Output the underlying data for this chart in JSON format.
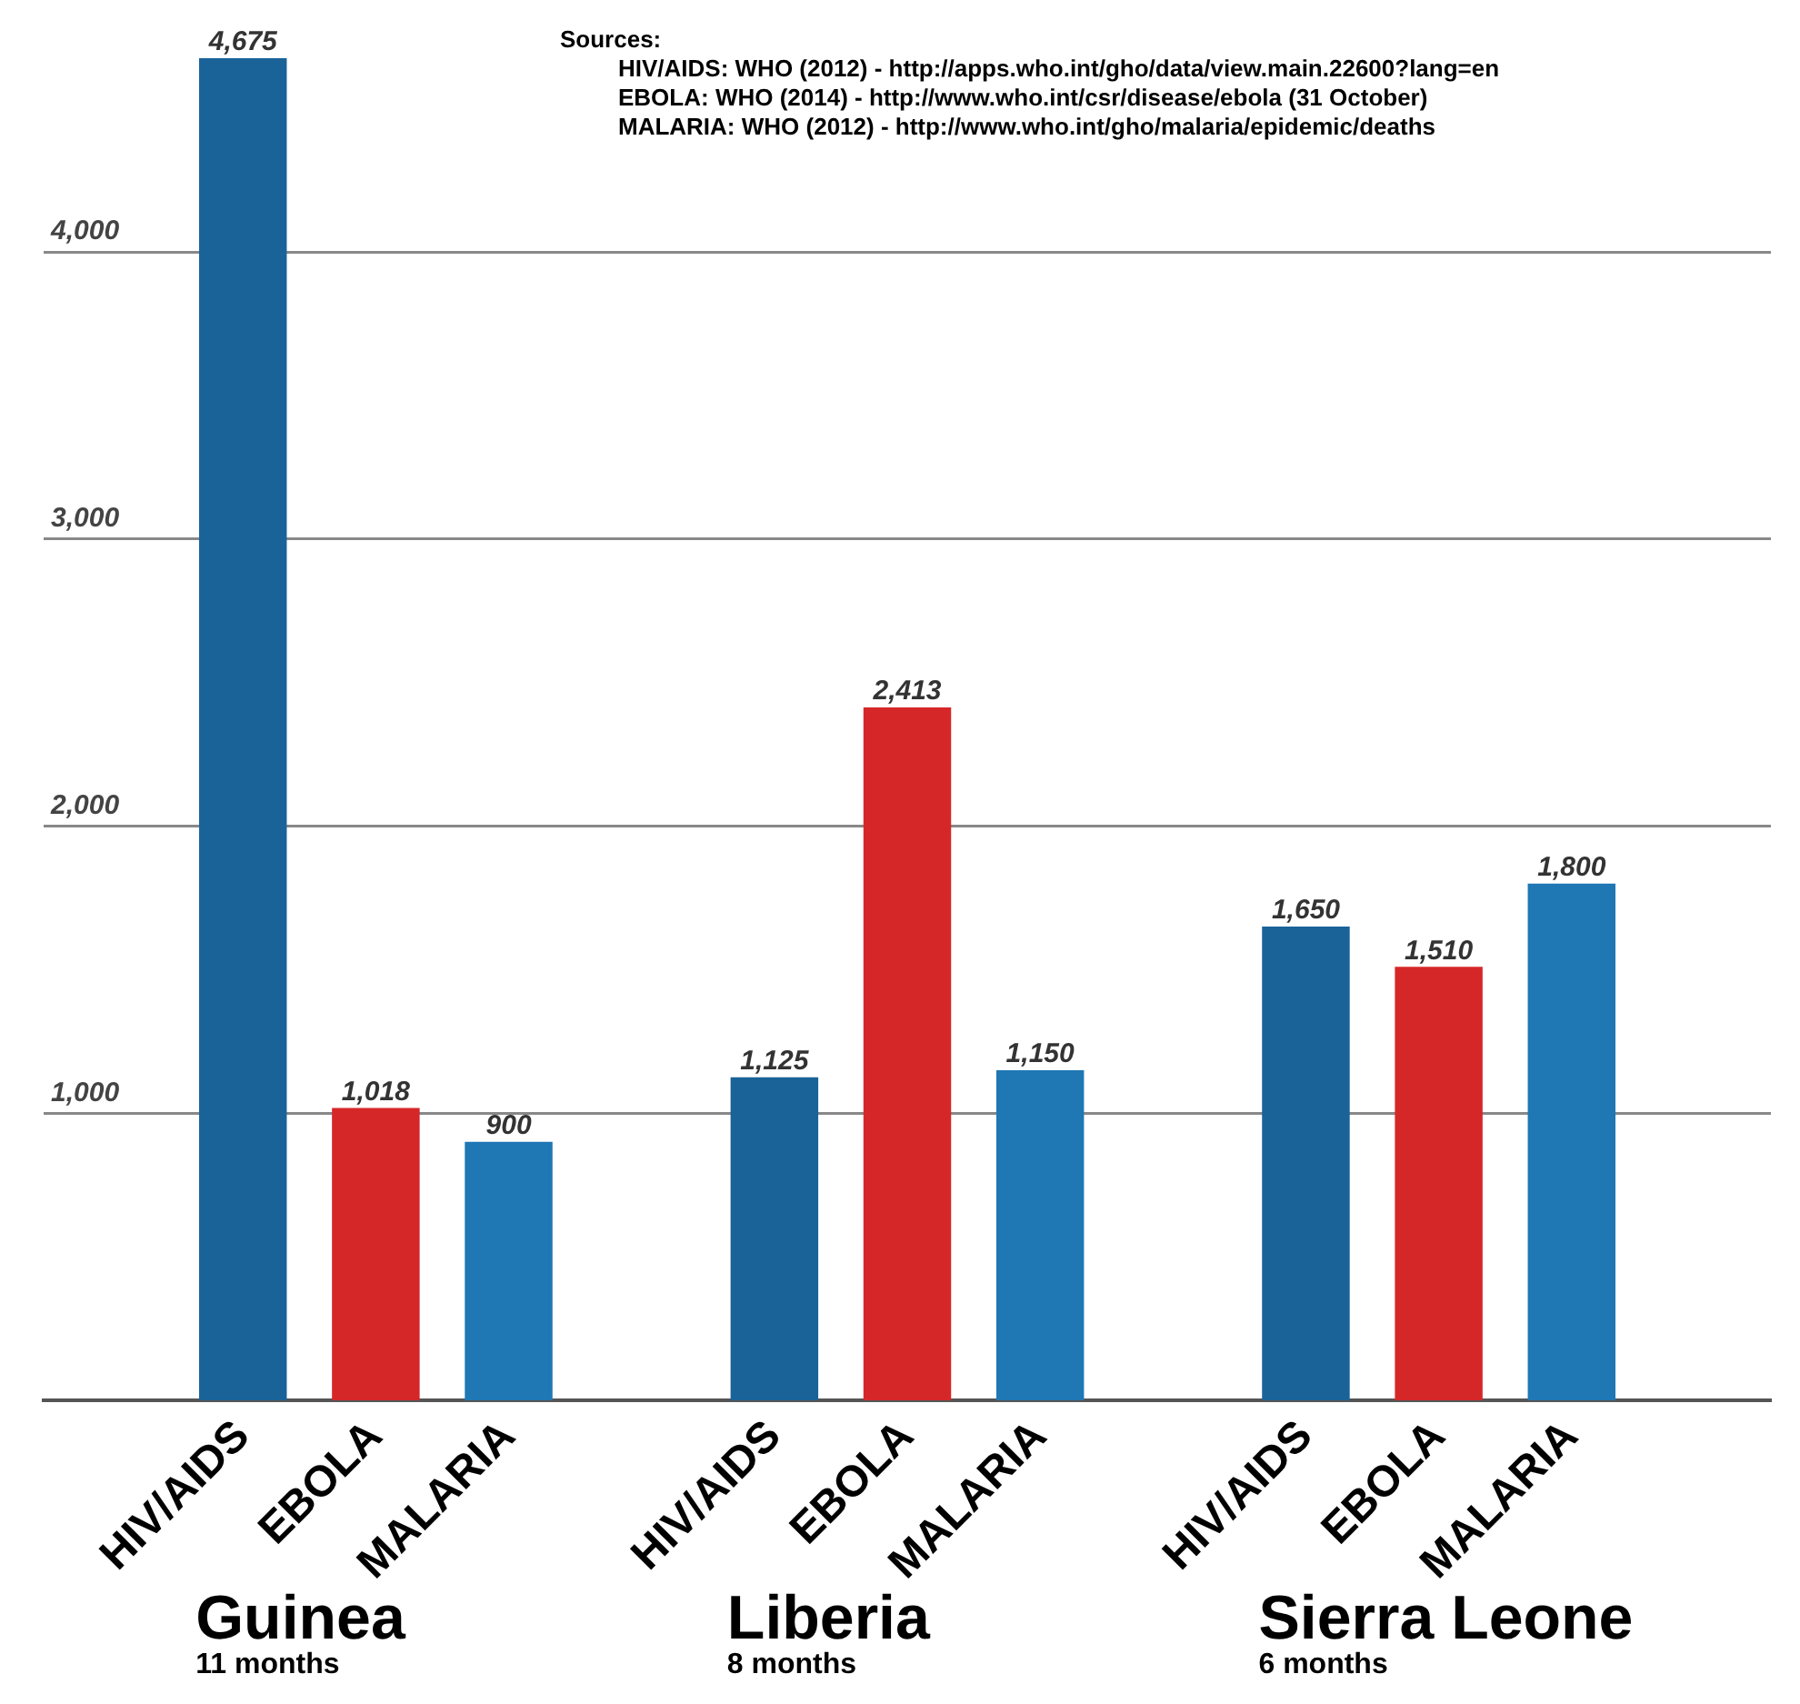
{
  "chart_data": {
    "type": "bar",
    "categories": [
      null,
      "HIV/AIDS",
      "EBOLA",
      "MALARIA",
      null,
      "HIV/AIDS",
      "EBOLA",
      "MALARIA",
      null,
      "HIV/AIDS",
      "EBOLA",
      "MALARIA",
      null
    ],
    "values": [
      null,
      4675,
      1018,
      900,
      null,
      1125,
      2413,
      1150,
      null,
      1650,
      1510,
      1800,
      null
    ],
    "colors": [
      "#1a6399",
      "#1a6399",
      "#d62728",
      "#1f77b4",
      "#1a6399",
      "#1a6399",
      "#d62728",
      "#1f77b4",
      "#1a6399",
      "#1a6399",
      "#d62728",
      "#1f77b4",
      "#1a6399"
    ],
    "value_labels": [
      null,
      "4,675",
      "1,018",
      "900",
      null,
      "1,125",
      "2,413",
      "1,150",
      null,
      "1,650",
      "1,510",
      "1,800",
      null
    ],
    "ylim": [
      0,
      4700
    ],
    "yticks": [
      {
        "value": 1000,
        "label": "1,000"
      },
      {
        "value": 2000,
        "label": "2,000"
      },
      {
        "value": 3000,
        "label": "3,000"
      },
      {
        "value": 4000,
        "label": "4,000"
      }
    ],
    "grid": "y",
    "legend": false,
    "annotations": [
      "Sources:",
      "HIV/AIDS: WHO (2012) - http://apps.who.int/gho/data/view.main.22600?lang=en",
      "EBOLA: WHO (2014) - http://www.who.int/csr/disease/ebola (31 October)",
      "MALARIA: WHO (2012) - http://www.who.int/gho/malaria/epidemic/deaths",
      "Guinea",
      "11 months",
      "Liberia",
      "8 months",
      "Sierra Leone",
      "6 months"
    ]
  }
}
